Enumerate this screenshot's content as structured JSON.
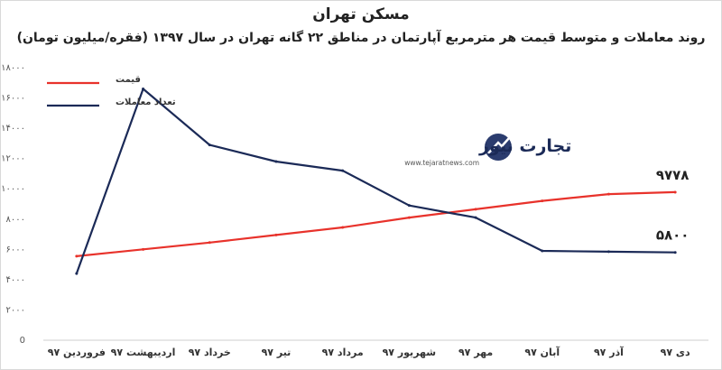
{
  "header": {
    "title": "مسکن تهران",
    "subtitle": "روند معاملات و متوسط قیمت هر مترمربع آپارتمان در مناطق ۲۲ گانه تهران در سال ۱۳۹۷ (فقره/میلیون تومان)"
  },
  "watermark": {
    "brand": "تجارت نیوز",
    "url": "www.tejaratnews.com"
  },
  "colors": {
    "price": "#e8322b",
    "transactions": "#1b2a57",
    "background": "#ffffff"
  },
  "chart_data": {
    "type": "line",
    "title": "مسکن تهران",
    "subtitle": "روند معاملات و متوسط قیمت هر مترمربع آپارتمان در مناطق ۲۲ گانه تهران در سال ۱۳۹۷ (فقره/میلیون تومان)",
    "categories": [
      "فروردین ۹۷",
      "اردیبهشت ۹۷",
      "خرداد ۹۷",
      "تیر ۹۷",
      "مرداد ۹۷",
      "شهریور ۹۷",
      "مهر ۹۷",
      "آبان ۹۷",
      "آذر ۹۷",
      "دی ۹۷"
    ],
    "ylim": [
      0,
      18000
    ],
    "yticks": [
      0,
      2000,
      4000,
      6000,
      8000,
      10000,
      12000,
      14000,
      16000,
      18000
    ],
    "ytick_labels": [
      "0",
      "۲۰۰۰",
      "۴۰۰۰",
      "۶۰۰۰",
      "۸۰۰۰",
      "۱۰۰۰۰",
      "۱۲۰۰۰",
      "۱۴۰۰۰",
      "۱۶۰۰۰",
      "۱۸۰۰۰"
    ],
    "grid": false,
    "legend_position": "top-left",
    "series": [
      {
        "name": "قیمت",
        "color": "#e8322b",
        "values": [
          5550,
          6000,
          6450,
          6950,
          7450,
          8100,
          8650,
          9200,
          9650,
          9778
        ],
        "end_label": "۹۷۷۸"
      },
      {
        "name": "تعداد معاملات",
        "color": "#1b2a57",
        "values": [
          4400,
          16600,
          12900,
          11800,
          11200,
          8900,
          8100,
          5900,
          5850,
          5800
        ],
        "end_label": "۵۸۰۰"
      }
    ]
  }
}
